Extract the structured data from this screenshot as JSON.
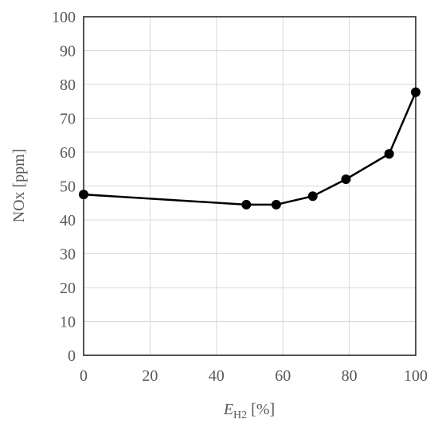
{
  "chart_data": {
    "type": "line",
    "x_label": {
      "symbol": "E",
      "subscript": "H2",
      "unit": "[%]"
    },
    "y_label": "NOx [ppm]",
    "x": [
      0,
      49,
      58,
      69,
      79,
      92,
      100
    ],
    "series": [
      {
        "color": "#000000",
        "values": [
          47.5,
          44.5,
          44.5,
          47,
          52,
          59.5,
          77.7
        ]
      }
    ],
    "xlim": [
      0,
      100
    ],
    "xticks": [
      0,
      20,
      40,
      60,
      80,
      100
    ],
    "ylim": [
      0,
      100
    ],
    "yticks": [
      0,
      10,
      20,
      30,
      40,
      50,
      60,
      70,
      80,
      90,
      100
    ],
    "grid": true
  }
}
